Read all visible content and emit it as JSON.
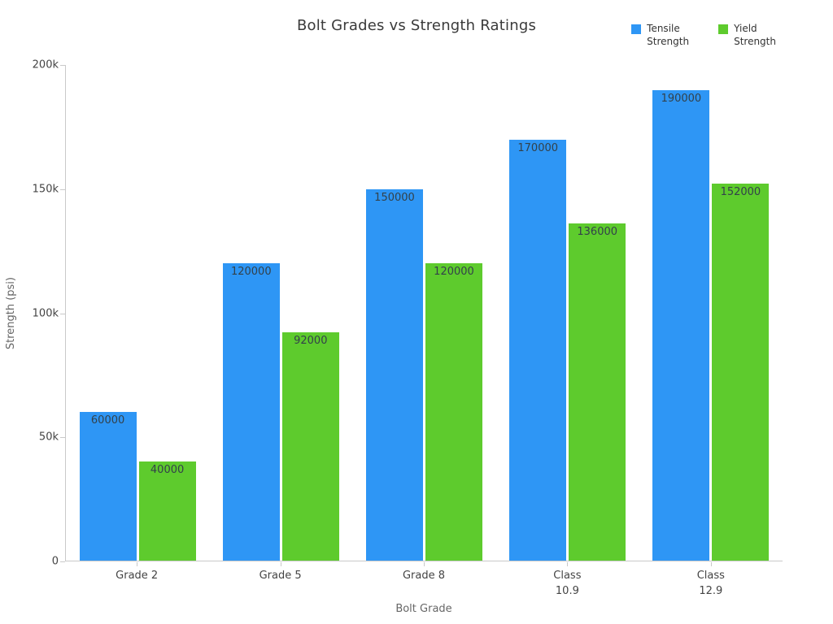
{
  "chart_data": {
    "type": "bar",
    "title": "Bolt Grades vs Strength Ratings",
    "xlabel": "Bolt Grade",
    "ylabel": "Strength (psi)",
    "ylim": [
      0,
      200000
    ],
    "grid": false,
    "legend_position": "top-right",
    "categories": [
      "Grade 2",
      "Grade 5",
      "Grade 8",
      "Class 10.9",
      "Class 12.9"
    ],
    "category_display": [
      [
        "Grade 2"
      ],
      [
        "Grade 5"
      ],
      [
        "Grade 8"
      ],
      [
        "Class",
        "10.9"
      ],
      [
        "Class",
        "12.9"
      ]
    ],
    "yticks": [
      {
        "value": 0,
        "label": "0"
      },
      {
        "value": 50000,
        "label": "50k"
      },
      {
        "value": 100000,
        "label": "100k"
      },
      {
        "value": 150000,
        "label": "150k"
      },
      {
        "value": 200000,
        "label": "200k"
      }
    ],
    "series": [
      {
        "name": "Tensile Strength",
        "display_lines": [
          "Tensile",
          "Strength"
        ],
        "color": "#2E96F5",
        "values": [
          60000,
          120000,
          150000,
          170000,
          190000
        ]
      },
      {
        "name": "Yield Strength",
        "display_lines": [
          "Yield",
          "Strength"
        ],
        "color": "#5ECB2D",
        "values": [
          40000,
          92000,
          120000,
          136000,
          152000
        ]
      }
    ],
    "bar_labels_visible": true,
    "bar_label_color": "#33414a",
    "axis_color": "#c9c9c9",
    "tick_text_color": "#444444",
    "title_color": "#3a3a3a"
  }
}
